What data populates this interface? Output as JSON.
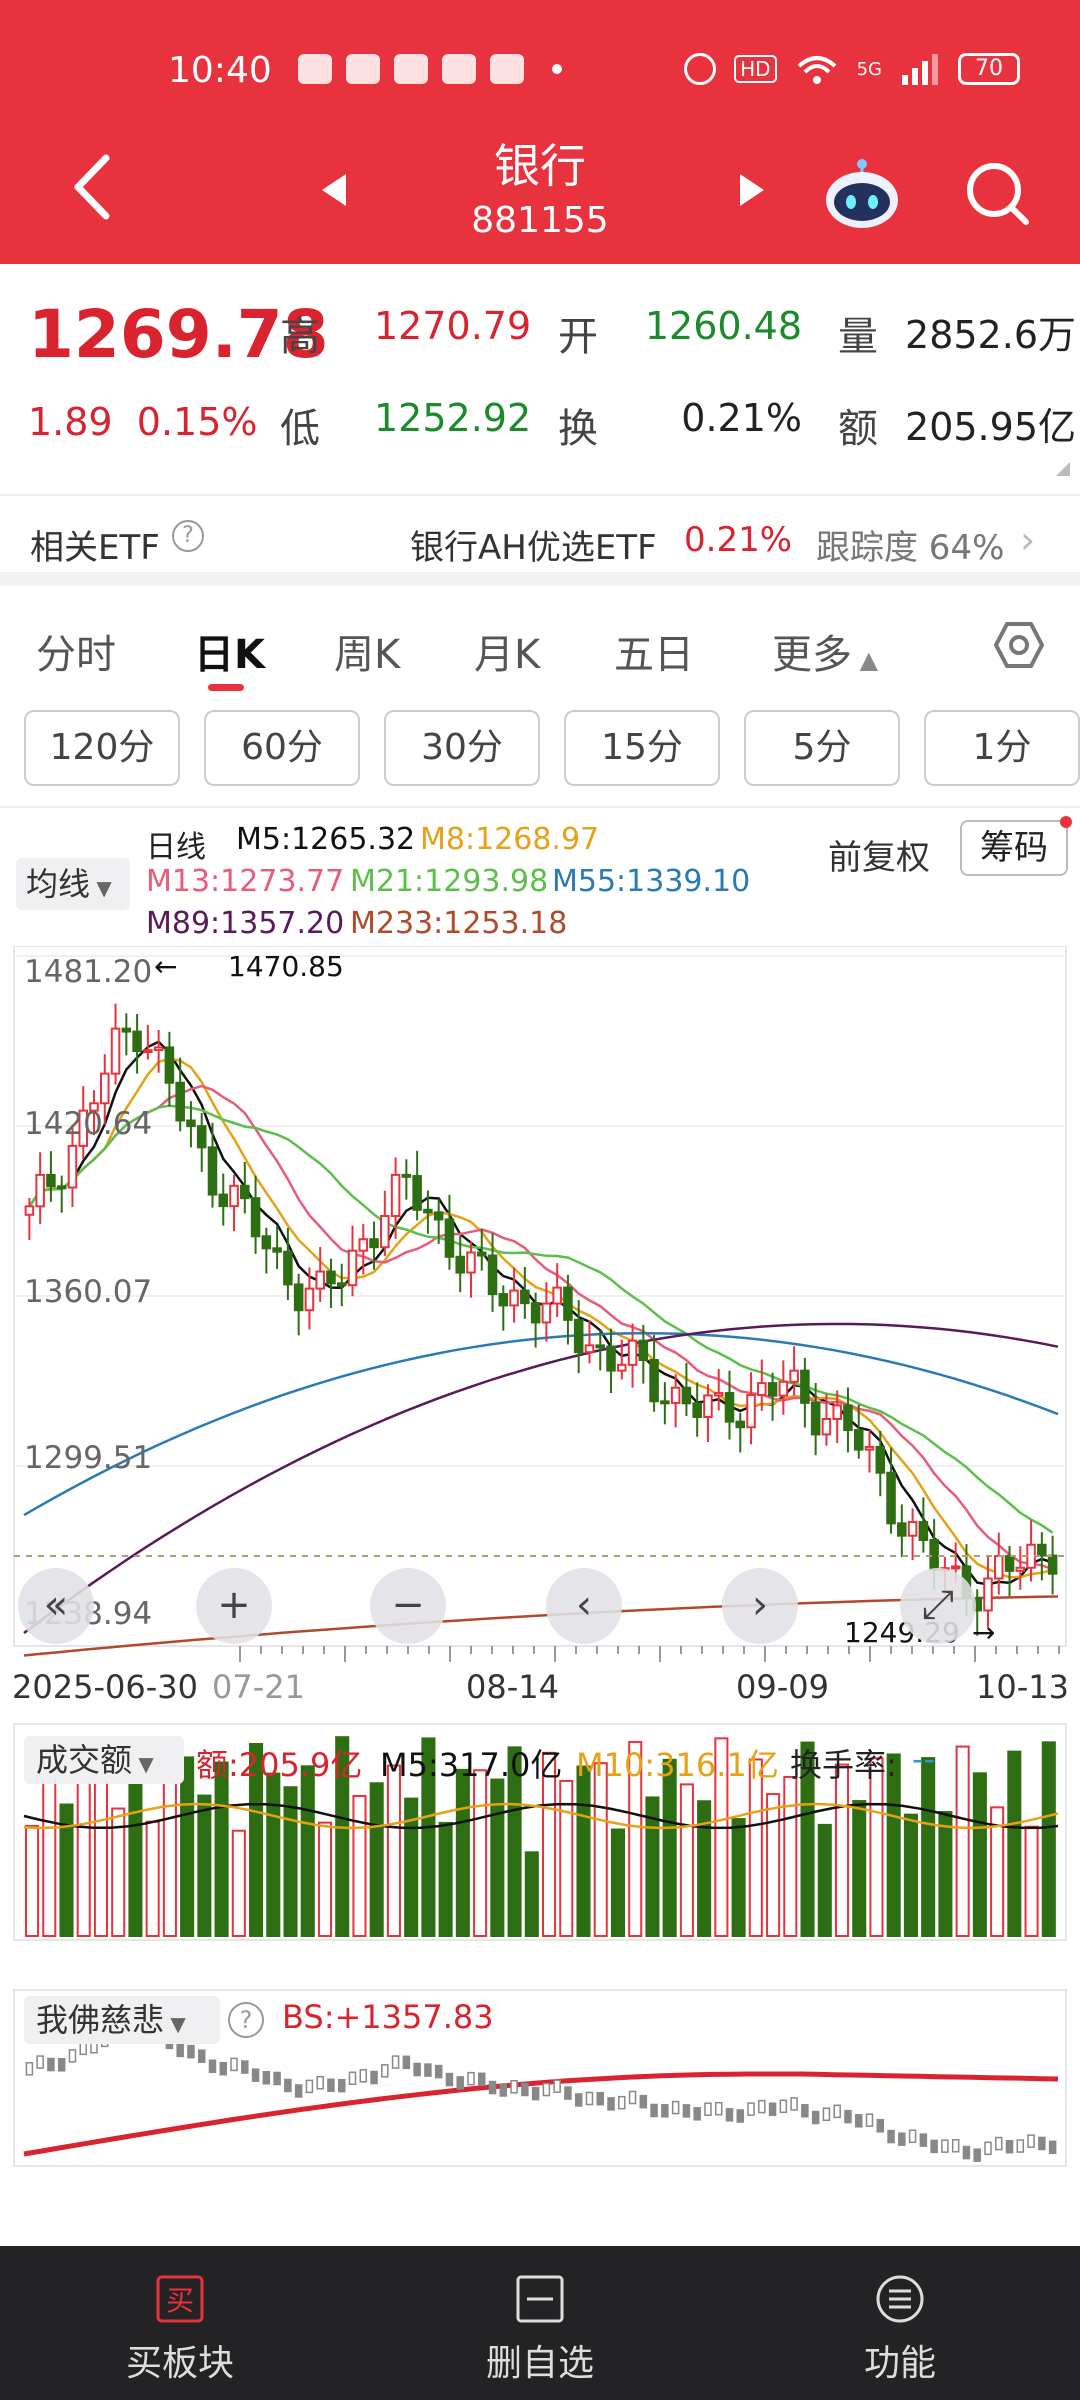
{
  "status_bar": {
    "time": "10:40",
    "battery": "70",
    "hd": "HD",
    "network": "5G"
  },
  "header": {
    "title": "银行",
    "code": "881155"
  },
  "quote": {
    "price": "1269.78",
    "change": "1.89",
    "change_pct": "0.15%",
    "high_label": "高",
    "high": "1270.79",
    "low_label": "低",
    "low": "1252.92",
    "open_label": "开",
    "open": "1260.48",
    "turnover_label": "换",
    "turnover": "0.21%",
    "volume_label": "量",
    "volume": "2852.6万",
    "amount_label": "额",
    "amount": "205.95亿"
  },
  "etf": {
    "label": "相关ETF",
    "name": "银行AH优选ETF",
    "pct": "0.21%",
    "tracking": "跟踪度 64%"
  },
  "tabs": [
    "分时",
    "日K",
    "周K",
    "月K",
    "五日",
    "更多"
  ],
  "periods": [
    "120分",
    "60分",
    "30分",
    "15分",
    "5分",
    "1分"
  ],
  "ma": {
    "selector": "均线",
    "line_label": "日线",
    "m5": "M5:1265.32",
    "m8": "M8:1268.97",
    "m13": "M13:1273.77",
    "m21": "M21:1293.98",
    "m55": "M55:1339.10",
    "m89": "M89:1357.20",
    "m233": "M233:1253.18",
    "fuquan": "前复权",
    "chouma": "筹码"
  },
  "colors": {
    "accent": "#e8323e",
    "up": "#e8323e",
    "down": "#2e6e12",
    "m5": "#111111",
    "m8": "#e6a117",
    "m13": "#e85c7a",
    "m21": "#5cbf4a",
    "m55": "#2a7ab5",
    "m89": "#5a1a5a",
    "m233": "#b04a2a"
  },
  "chart_labels": {
    "y_ticks": [
      "1481.20",
      "1420.64",
      "1360.07",
      "1299.51",
      "1238.94"
    ],
    "x_ticks": [
      "2025-06-30",
      "07-21",
      "08-14",
      "09-09",
      "10-13"
    ],
    "max_label": "1470.85",
    "min_label": "1249.29"
  },
  "chart_data": {
    "type": "candlestick",
    "ylim": [
      1238.94,
      1481.2
    ],
    "x_ticks": [
      "2025-06-30",
      "07-21",
      "08-14",
      "09-09",
      "10-13"
    ],
    "max_price": 1470.85,
    "min_price": 1249.29,
    "trend_close": [
      1388,
      1402,
      1415,
      1432,
      1450,
      1458,
      1440,
      1420,
      1405,
      1398,
      1385,
      1372,
      1365,
      1360,
      1366,
      1380,
      1392,
      1398,
      1390,
      1378,
      1368,
      1362,
      1360,
      1356,
      1352,
      1345,
      1338,
      1336,
      1330,
      1325,
      1320,
      1318,
      1322,
      1326,
      1328,
      1322,
      1318,
      1310,
      1298,
      1284,
      1270,
      1262,
      1258,
      1256,
      1262,
      1268,
      1270
    ]
  },
  "volume": {
    "selector": "成交额",
    "amount": "额:205.9亿",
    "m5": "M5:317.0亿",
    "m10": "M10:316.1亿",
    "turnover": "换手率:",
    "turnover_val": "--"
  },
  "indicator": {
    "selector": "我佛慈悲",
    "bs": "BS:+1357.83"
  },
  "bottom_nav": [
    {
      "label": "买板块",
      "icon": "buy-icon"
    },
    {
      "label": "删自选",
      "icon": "remove-watchlist-icon"
    },
    {
      "label": "功能",
      "icon": "menu-icon"
    }
  ]
}
